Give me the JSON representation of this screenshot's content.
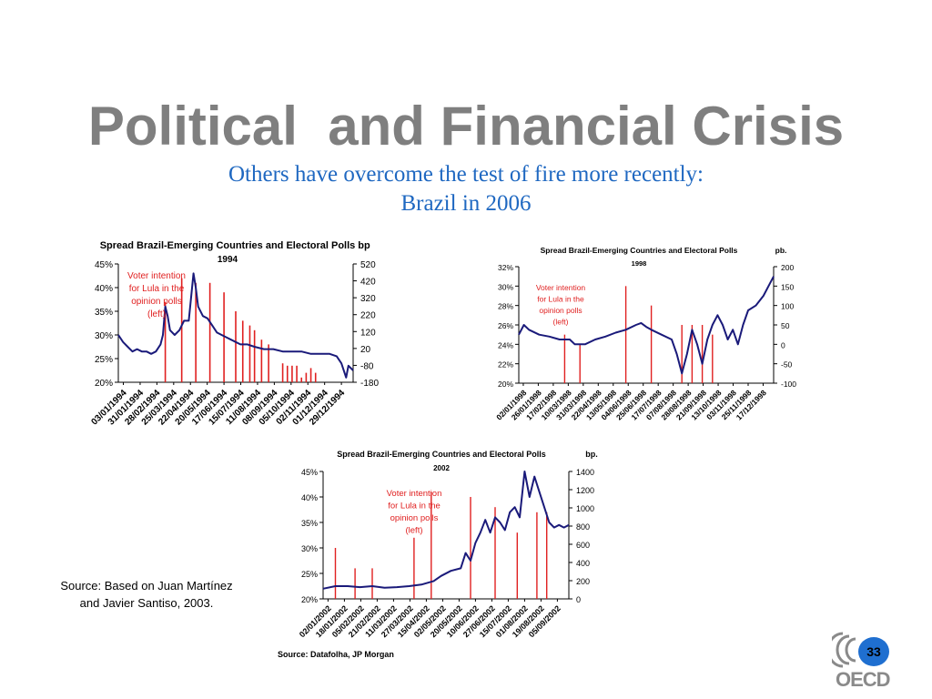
{
  "slide": {
    "title": "Political  and Financial Crisis",
    "subtitle_line1": "Others have overcome the test of fire more recently:",
    "subtitle_line2": "Brazil in 2006",
    "source_line1": "Source: Based on Juan Martínez",
    "source_line2": "and Javier Santiso, 2003.",
    "page_number": "33",
    "logo_text": "OECD",
    "colors": {
      "title": "#7f7f7f",
      "subtitle": "#1f68c1",
      "series_line": "#1a1a7a",
      "bars": "#e02020",
      "annotation": "#e02020",
      "badge": "#1f6fd0",
      "logo": "#8a8a8a"
    }
  },
  "chart_data": [
    {
      "type": "bar+line",
      "title": "Spread Brazil-Emerging Countries and Electoral Polls",
      "subtitle": "1994",
      "right_unit": "bp",
      "annotation": [
        "Voter intention",
        "for Lula in the",
        "opinion polls",
        "(left)"
      ],
      "left_ticks": [
        "45%",
        "40%",
        "35%",
        "30%",
        "25%",
        "20%"
      ],
      "right_ticks": [
        "520",
        "420",
        "320",
        "220",
        "120",
        "20",
        "-80",
        "-180"
      ],
      "left_range": [
        20,
        45
      ],
      "x_labels": [
        "03/01/1994",
        "31/01/1994",
        "28/02/1994",
        "25/03/1994",
        "22/04/1994",
        "20/05/1994",
        "17/06/1994",
        "15/07/1994",
        "11/08/1994",
        "08/09/1994",
        "05/10/1994",
        "02/11/1994",
        "01/12/1994",
        "29/12/1994"
      ],
      "bars": [
        [
          0.2,
          37
        ],
        [
          0.27,
          42
        ],
        [
          0.33,
          41
        ],
        [
          0.39,
          41
        ],
        [
          0.45,
          39
        ],
        [
          0.5,
          35
        ],
        [
          0.53,
          33
        ],
        [
          0.56,
          32
        ],
        [
          0.58,
          31
        ],
        [
          0.61,
          29
        ],
        [
          0.64,
          28
        ],
        [
          0.7,
          24
        ],
        [
          0.72,
          23.5
        ],
        [
          0.74,
          23.5
        ],
        [
          0.76,
          23.5
        ],
        [
          0.78,
          21
        ],
        [
          0.8,
          22
        ],
        [
          0.82,
          23
        ],
        [
          0.84,
          22
        ]
      ],
      "line": [
        [
          0,
          30
        ],
        [
          0.02,
          28.5
        ],
        [
          0.04,
          27.5
        ],
        [
          0.06,
          26.5
        ],
        [
          0.08,
          27
        ],
        [
          0.1,
          26.5
        ],
        [
          0.12,
          26.5
        ],
        [
          0.14,
          26
        ],
        [
          0.16,
          26.5
        ],
        [
          0.18,
          28
        ],
        [
          0.19,
          30
        ],
        [
          0.2,
          36
        ],
        [
          0.21,
          34
        ],
        [
          0.22,
          31
        ],
        [
          0.24,
          30
        ],
        [
          0.26,
          31
        ],
        [
          0.28,
          33
        ],
        [
          0.3,
          33
        ],
        [
          0.31,
          38
        ],
        [
          0.32,
          43
        ],
        [
          0.33,
          40
        ],
        [
          0.34,
          36
        ],
        [
          0.36,
          34
        ],
        [
          0.38,
          33.5
        ],
        [
          0.4,
          32
        ],
        [
          0.42,
          30.5
        ],
        [
          0.44,
          30
        ],
        [
          0.46,
          29.5
        ],
        [
          0.48,
          29
        ],
        [
          0.5,
          28.5
        ],
        [
          0.52,
          28
        ],
        [
          0.55,
          28
        ],
        [
          0.58,
          27.5
        ],
        [
          0.62,
          27
        ],
        [
          0.66,
          27
        ],
        [
          0.7,
          26.5
        ],
        [
          0.74,
          26.5
        ],
        [
          0.78,
          26.5
        ],
        [
          0.82,
          26
        ],
        [
          0.86,
          26
        ],
        [
          0.9,
          26
        ],
        [
          0.93,
          25.5
        ],
        [
          0.95,
          24
        ],
        [
          0.97,
          21
        ],
        [
          0.98,
          23.5
        ],
        [
          1,
          22.5
        ]
      ]
    },
    {
      "type": "bar+line",
      "title": "Spread Brazil-Emerging Countries and Electoral Polls",
      "subtitle": "1998",
      "right_unit": "pb.",
      "annotation": [
        "Voter intention",
        "for Lula in the",
        "opinion polls",
        "(left)"
      ],
      "left_ticks": [
        "32%",
        "30%",
        "28%",
        "26%",
        "24%",
        "22%",
        "20%"
      ],
      "right_ticks": [
        "200",
        "150",
        "100",
        "50",
        "0",
        "-50",
        "-100"
      ],
      "left_range": [
        20,
        32
      ],
      "x_labels": [
        "02/01/1998",
        "26/01/1998",
        "17/02/1998",
        "10/03/1998",
        "31/03/1998",
        "22/04/1998",
        "13/05/1998",
        "04/06/1998",
        "25/06/1998",
        "17/07/1998",
        "07/08/1998",
        "28/08/1998",
        "21/09/1998",
        "13/10/1998",
        "03/11/1998",
        "25/11/1998",
        "17/12/1998"
      ],
      "bars": [
        [
          0.18,
          25
        ],
        [
          0.24,
          24
        ],
        [
          0.42,
          30
        ],
        [
          0.52,
          28
        ],
        [
          0.64,
          26
        ],
        [
          0.68,
          26
        ],
        [
          0.72,
          26
        ],
        [
          0.76,
          25
        ]
      ],
      "line": [
        [
          0,
          25
        ],
        [
          0.02,
          26
        ],
        [
          0.04,
          25.5
        ],
        [
          0.08,
          25
        ],
        [
          0.12,
          24.8
        ],
        [
          0.16,
          24.5
        ],
        [
          0.2,
          24.5
        ],
        [
          0.22,
          24
        ],
        [
          0.26,
          24
        ],
        [
          0.3,
          24.5
        ],
        [
          0.34,
          24.8
        ],
        [
          0.38,
          25.2
        ],
        [
          0.42,
          25.5
        ],
        [
          0.46,
          26
        ],
        [
          0.48,
          26.2
        ],
        [
          0.5,
          25.8
        ],
        [
          0.52,
          25.5
        ],
        [
          0.56,
          25
        ],
        [
          0.6,
          24.5
        ],
        [
          0.62,
          23
        ],
        [
          0.64,
          21
        ],
        [
          0.66,
          23
        ],
        [
          0.68,
          25.5
        ],
        [
          0.7,
          24
        ],
        [
          0.72,
          22
        ],
        [
          0.74,
          24.5
        ],
        [
          0.76,
          26
        ],
        [
          0.78,
          27
        ],
        [
          0.8,
          26
        ],
        [
          0.82,
          24.5
        ],
        [
          0.84,
          25.5
        ],
        [
          0.86,
          24
        ],
        [
          0.88,
          26
        ],
        [
          0.9,
          27.5
        ],
        [
          0.93,
          28
        ],
        [
          0.96,
          29
        ],
        [
          0.98,
          30
        ],
        [
          1,
          31
        ]
      ]
    },
    {
      "type": "bar+line",
      "title": "Spread Brazil-Emerging Countries and Electoral Polls",
      "subtitle": "2002",
      "right_unit": "bp.",
      "annotation": [
        "Voter intention",
        "for Lula in the",
        "opinion polls",
        "(left)"
      ],
      "left_ticks": [
        "45%",
        "40%",
        "35%",
        "30%",
        "25%",
        "20%"
      ],
      "right_ticks": [
        "1400",
        "1200",
        "1000",
        "800",
        "600",
        "400",
        "200",
        "0"
      ],
      "left_range": [
        20,
        45
      ],
      "x_labels": [
        "02/01/2002",
        "18/01/2002",
        "05/02/2002",
        "21/02/2002",
        "11/03/2002",
        "27/03/2002",
        "15/04/2002",
        "02/05/2002",
        "20/05/2002",
        "10/06/2002",
        "27/06/2002",
        "15/07/2002",
        "01/08/2002",
        "19/08/2002",
        "05/09/2002"
      ],
      "bars": [
        [
          0.05,
          30
        ],
        [
          0.13,
          26
        ],
        [
          0.2,
          26
        ],
        [
          0.37,
          32
        ],
        [
          0.44,
          41
        ],
        [
          0.6,
          40
        ],
        [
          0.7,
          38
        ],
        [
          0.79,
          33
        ],
        [
          0.87,
          37
        ],
        [
          0.91,
          37
        ]
      ],
      "line": [
        [
          0,
          22
        ],
        [
          0.05,
          22.5
        ],
        [
          0.1,
          22.5
        ],
        [
          0.15,
          22.3
        ],
        [
          0.2,
          22.5
        ],
        [
          0.25,
          22.2
        ],
        [
          0.3,
          22.3
        ],
        [
          0.35,
          22.5
        ],
        [
          0.4,
          22.8
        ],
        [
          0.45,
          23.5
        ],
        [
          0.48,
          24.5
        ],
        [
          0.52,
          25.5
        ],
        [
          0.56,
          26
        ],
        [
          0.58,
          29
        ],
        [
          0.6,
          27.5
        ],
        [
          0.62,
          31
        ],
        [
          0.64,
          33
        ],
        [
          0.66,
          35.5
        ],
        [
          0.68,
          33
        ],
        [
          0.7,
          36
        ],
        [
          0.72,
          35
        ],
        [
          0.74,
          33.5
        ],
        [
          0.76,
          37
        ],
        [
          0.78,
          38
        ],
        [
          0.8,
          36
        ],
        [
          0.82,
          45
        ],
        [
          0.84,
          40
        ],
        [
          0.86,
          44
        ],
        [
          0.88,
          41
        ],
        [
          0.9,
          38
        ],
        [
          0.92,
          35
        ],
        [
          0.94,
          34
        ],
        [
          0.96,
          34.5
        ],
        [
          0.98,
          34
        ],
        [
          1,
          34.5
        ]
      ]
    }
  ],
  "chart_source": "Source: Datafolha, JP Morgan"
}
